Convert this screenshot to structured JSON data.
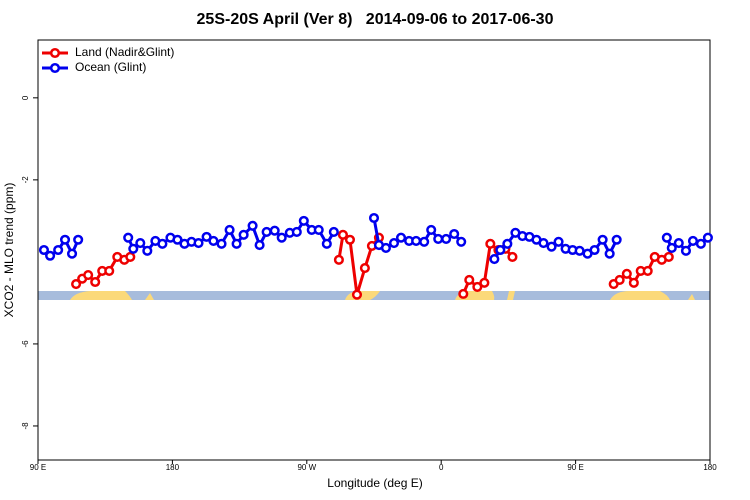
{
  "chart_data": {
    "type": "line",
    "title": "25S-20S April (Ver 8)   2014-09-06 to 2017-06-30",
    "x_label": "Longitude (deg E)",
    "y_label": "XCO2 - MLO trend (ppm)",
    "xlim": [
      90,
      540
    ],
    "xticks": [
      {
        "value": 90,
        "label": "90 E"
      },
      {
        "value": 180,
        "label": "180"
      },
      {
        "value": 270,
        "label": "90 W"
      },
      {
        "value": 360,
        "label": "0"
      },
      {
        "value": 450,
        "label": "90 E"
      },
      {
        "value": 540,
        "label": "180"
      }
    ],
    "ylim": [
      -8.83,
      1.41
    ],
    "yticks": [
      0,
      -2,
      -6,
      -8
    ],
    "legend": "top-left",
    "series": [
      {
        "name": "Land (Nadir&Glint)",
        "color": "#ee0000",
        "x": [
          115.5,
          119.6,
          123.6,
          128.3,
          133.0,
          137.7,
          143.1,
          147.8,
          151.8,
          null,
          291.5,
          294.2,
          298.9,
          303.6,
          308.9,
          313.6,
          318.3,
          null,
          374.8,
          378.8,
          384.2,
          388.9,
          392.9,
          398.3,
          403.0,
          407.7,
          null,
          475.5,
          479.5,
          484.3,
          489.0,
          493.6,
          498.3,
          503.0,
          507.7,
          512.4
        ],
        "values": [
          -4.54,
          -4.41,
          -4.32,
          -4.49,
          -4.22,
          -4.22,
          -3.88,
          -3.95,
          -3.88,
          null,
          -3.95,
          -3.34,
          -3.46,
          -4.8,
          -4.15,
          -3.61,
          -3.41,
          null,
          -4.78,
          -4.44,
          -4.61,
          -4.51,
          -3.56,
          -3.71,
          -3.68,
          -3.88,
          null,
          -4.54,
          -4.44,
          -4.29,
          -4.51,
          -4.22,
          -4.22,
          -3.88,
          -3.95,
          -3.88
        ]
      },
      {
        "name": "Ocean (Glint)",
        "color": "#0000ee",
        "x": [
          94.0,
          98.1,
          103.5,
          108.1,
          112.8,
          116.9,
          null,
          150.4,
          153.8,
          158.5,
          163.2,
          168.6,
          173.3,
          178.7,
          183.4,
          188.1,
          192.8,
          197.5,
          202.9,
          207.5,
          212.9,
          218.3,
          223.0,
          227.7,
          233.7,
          238.4,
          243.1,
          248.5,
          253.2,
          258.6,
          263.3,
          268.0,
          273.3,
          278.0,
          283.4,
          288.1,
          null,
          315.0,
          318.3,
          323.0,
          328.4,
          333.1,
          338.5,
          343.2,
          348.6,
          353.3,
          358.0,
          363.3,
          368.7,
          373.4,
          null,
          395.6,
          399.6,
          404.3,
          409.7,
          414.4,
          419.1,
          423.8,
          428.5,
          433.9,
          438.6,
          443.3,
          448.0,
          452.7,
          458.0,
          462.7,
          468.1,
          472.8,
          477.5,
          null,
          511.1,
          514.4,
          519.1,
          523.9,
          528.6,
          533.9,
          538.6
        ],
        "values": [
          -3.71,
          -3.85,
          -3.71,
          -3.46,
          -3.8,
          -3.46,
          null,
          -3.41,
          -3.68,
          -3.54,
          -3.73,
          -3.49,
          -3.56,
          -3.41,
          -3.46,
          -3.56,
          -3.51,
          -3.54,
          -3.39,
          -3.49,
          -3.56,
          -3.22,
          -3.56,
          -3.34,
          -3.12,
          -3.59,
          -3.27,
          -3.24,
          -3.41,
          -3.29,
          -3.27,
          -3.0,
          -3.22,
          -3.22,
          -3.56,
          -3.27,
          null,
          -2.93,
          -3.59,
          -3.66,
          -3.54,
          -3.41,
          -3.49,
          -3.49,
          -3.51,
          -3.22,
          -3.44,
          -3.44,
          -3.32,
          -3.51,
          null,
          -3.93,
          -3.71,
          -3.56,
          -3.29,
          -3.37,
          -3.39,
          -3.46,
          -3.54,
          -3.63,
          -3.51,
          -3.68,
          -3.71,
          -3.73,
          -3.8,
          -3.71,
          -3.46,
          -3.8,
          -3.46,
          null,
          -3.41,
          -3.66,
          -3.54,
          -3.73,
          -3.49,
          -3.56,
          -3.41
        ]
      }
    ]
  }
}
